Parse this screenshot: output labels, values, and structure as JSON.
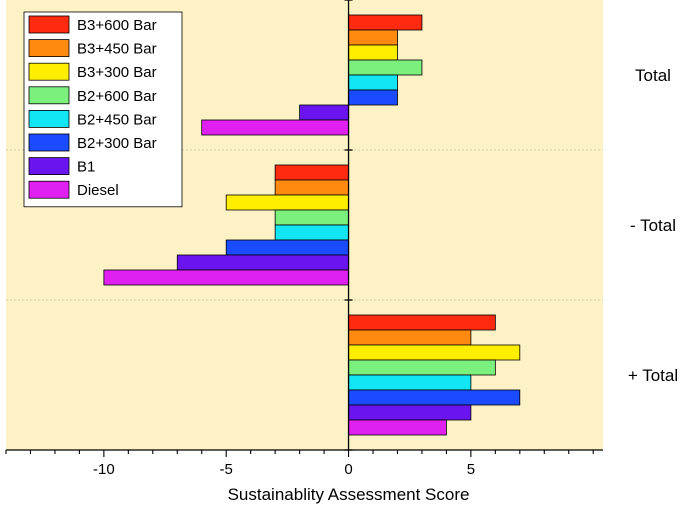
{
  "chart_data": {
    "type": "bar",
    "orientation": "horizontal",
    "xlabel": "Sustainablity Assessment Score",
    "xlim": [
      -14,
      10.4
    ],
    "xticks": [
      -10,
      -5,
      0,
      5
    ],
    "xtick_labels": [
      "-10",
      "-5",
      "0",
      "5"
    ],
    "categories": [
      "Total",
      "- Total",
      "+ Total"
    ],
    "series": [
      {
        "name": "B3+600 Bar",
        "color": "#ff2a0f",
        "values": [
          3,
          -3,
          6
        ]
      },
      {
        "name": "B3+450 Bar",
        "color": "#ff8a0f",
        "values": [
          2,
          -3,
          5
        ]
      },
      {
        "name": "B3+300 Bar",
        "color": "#ffee00",
        "values": [
          2,
          -5,
          7
        ]
      },
      {
        "name": "B2+600 Bar",
        "color": "#7cf07c",
        "values": [
          3,
          -3,
          6
        ]
      },
      {
        "name": "B2+450 Bar",
        "color": "#12e6f5",
        "values": [
          2,
          -3,
          5
        ]
      },
      {
        "name": "B2+300 Bar",
        "color": "#1a4bff",
        "values": [
          2,
          -5,
          7
        ]
      },
      {
        "name": "B1",
        "color": "#6a14f0",
        "values": [
          -2,
          -7,
          5
        ]
      },
      {
        "name": "Diesel",
        "color": "#e020f0",
        "values": [
          -6,
          -10,
          4
        ]
      }
    ],
    "background": "#fcf2c6",
    "legend_position": "top-left",
    "grid": false
  }
}
